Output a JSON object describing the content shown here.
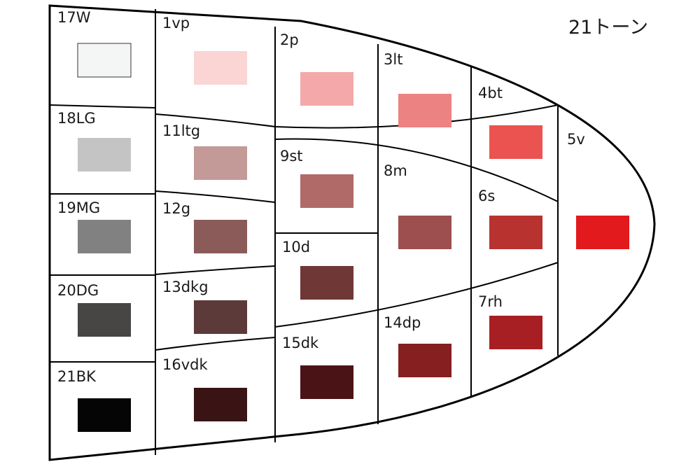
{
  "title": "21トーン",
  "tones": [
    {
      "id": "17W",
      "label": "17W",
      "color": "#f4f6f5",
      "outlined": true
    },
    {
      "id": "18LG",
      "label": "18LG",
      "color": "#c3c4c3"
    },
    {
      "id": "19MG",
      "label": "19MG",
      "color": "#818181"
    },
    {
      "id": "20DG",
      "label": "20DG",
      "color": "#474645"
    },
    {
      "id": "21BK",
      "label": "21BK",
      "color": "#050505"
    },
    {
      "id": "1vp",
      "label": "1vp",
      "color": "#fbd4d4"
    },
    {
      "id": "11ltg",
      "label": "11ltg",
      "color": "#c39a98"
    },
    {
      "id": "12g",
      "label": "12g",
      "color": "#8b5b59"
    },
    {
      "id": "13dkg",
      "label": "13dkg",
      "color": "#5d3a3a"
    },
    {
      "id": "16vdk",
      "label": "16vdk",
      "color": "#3a1414"
    },
    {
      "id": "2p",
      "label": "2p",
      "color": "#f4a8a9"
    },
    {
      "id": "9st",
      "label": "9st",
      "color": "#b06a67"
    },
    {
      "id": "10d",
      "label": "10d",
      "color": "#6f3736"
    },
    {
      "id": "15dk",
      "label": "15dk",
      "color": "#4a1416"
    },
    {
      "id": "3lt",
      "label": "3lt",
      "color": "#ed8282"
    },
    {
      "id": "8m",
      "label": "8m",
      "color": "#9d4e4f"
    },
    {
      "id": "14dp",
      "label": "14dp",
      "color": "#851f20"
    },
    {
      "id": "4bt",
      "label": "4bt",
      "color": "#eb5351"
    },
    {
      "id": "6s",
      "label": "6s",
      "color": "#b83230"
    },
    {
      "id": "7rh",
      "label": "7rh",
      "color": "#a71f22"
    },
    {
      "id": "5v",
      "label": "5v",
      "color": "#e31a1d"
    }
  ]
}
